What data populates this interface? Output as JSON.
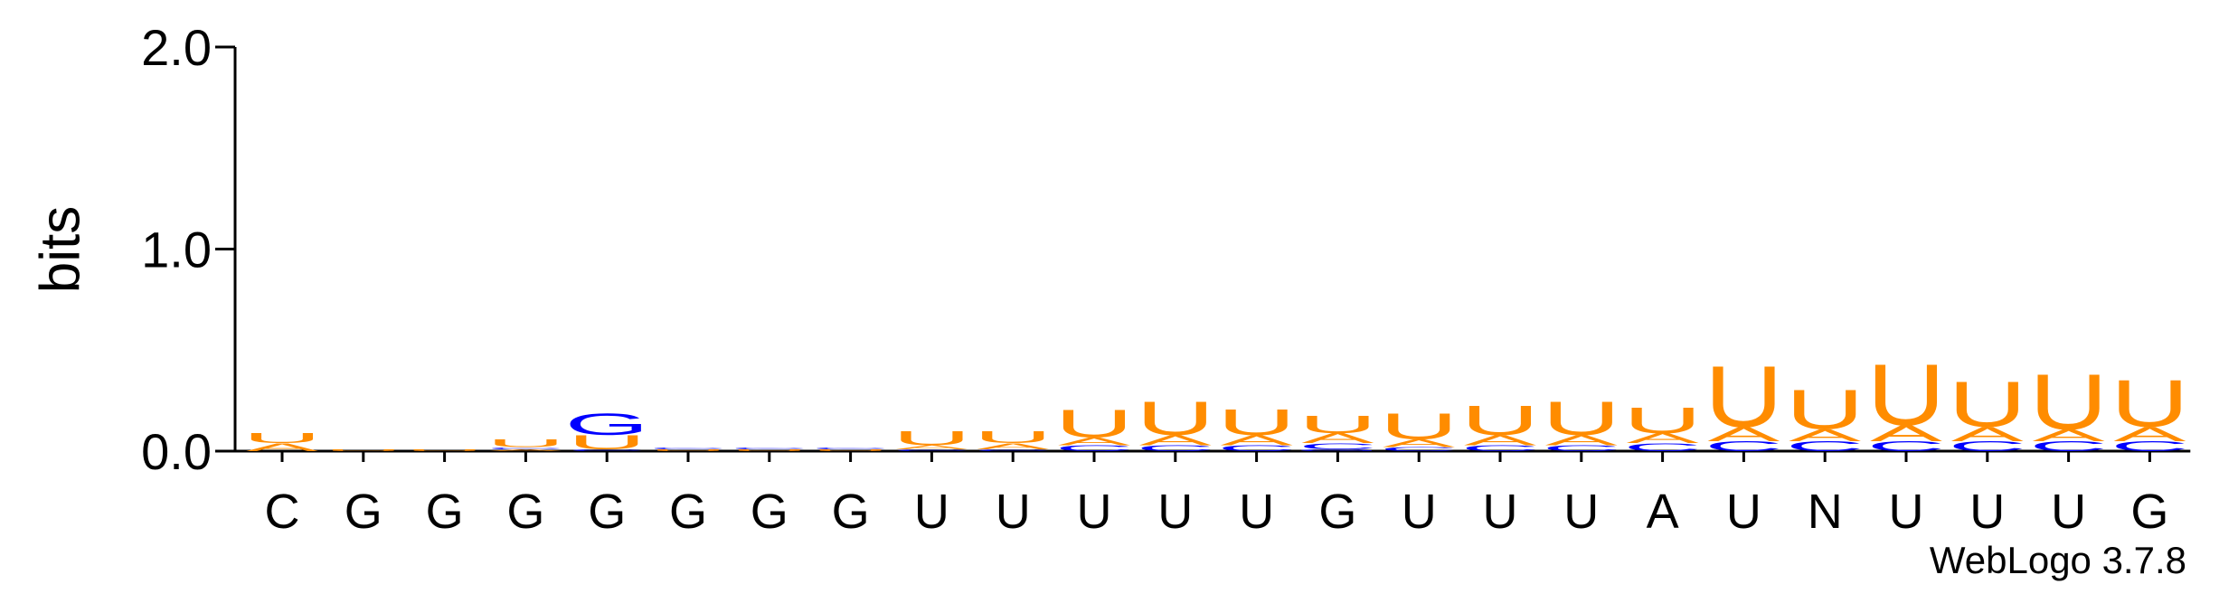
{
  "chart_data": {
    "type": "logo",
    "y_label": "bits",
    "footer": "WebLogo 3.7.8",
    "categories": [
      "C",
      "G",
      "G",
      "G",
      "G",
      "G",
      "G",
      "G",
      "U",
      "U",
      "U",
      "U",
      "U",
      "G",
      "U",
      "U",
      "U",
      "A",
      "U",
      "N",
      "U",
      "U",
      "U",
      "G"
    ],
    "ylim": [
      0,
      2
    ],
    "yticks": [
      {
        "value": 0,
        "label": "0.0"
      },
      {
        "value": 1,
        "label": "1.0"
      },
      {
        "value": 2,
        "label": "2.0"
      }
    ],
    "series": [
      {
        "name": "U",
        "color": "#ff8c00",
        "values": [
          0.05,
          0.01,
          0.01,
          0.04,
          0.07,
          0.01,
          0.01,
          0.01,
          0.07,
          0.06,
          0.14,
          0.17,
          0.13,
          0.09,
          0.13,
          0.15,
          0.17,
          0.13,
          0.31,
          0.2,
          0.31,
          0.23,
          0.28,
          0.24
        ]
      },
      {
        "name": "A",
        "color": "#ff8c00",
        "values": [
          0.04,
          0,
          0,
          0.01,
          0,
          0,
          0,
          0,
          0.02,
          0.03,
          0.04,
          0.05,
          0.05,
          0.05,
          0.04,
          0.05,
          0.05,
          0.05,
          0.07,
          0.06,
          0.08,
          0.07,
          0.06,
          0.07
        ]
      },
      {
        "name": "C",
        "color": "#0000ff",
        "values": [
          0,
          0,
          0,
          0.01,
          0.01,
          0.01,
          0.01,
          0.01,
          0.01,
          0.01,
          0.03,
          0.03,
          0.03,
          0.03,
          0.02,
          0.03,
          0.03,
          0.04,
          0.05,
          0.05,
          0.05,
          0.05,
          0.05,
          0.05
        ]
      },
      {
        "name": "G",
        "color": "#0000ff",
        "values": [
          0,
          0,
          0,
          0,
          0.11,
          0,
          0,
          0,
          0,
          0,
          0,
          0,
          0,
          0.01,
          0,
          0,
          0,
          0,
          0,
          0,
          0,
          0,
          0,
          0
        ]
      }
    ]
  }
}
